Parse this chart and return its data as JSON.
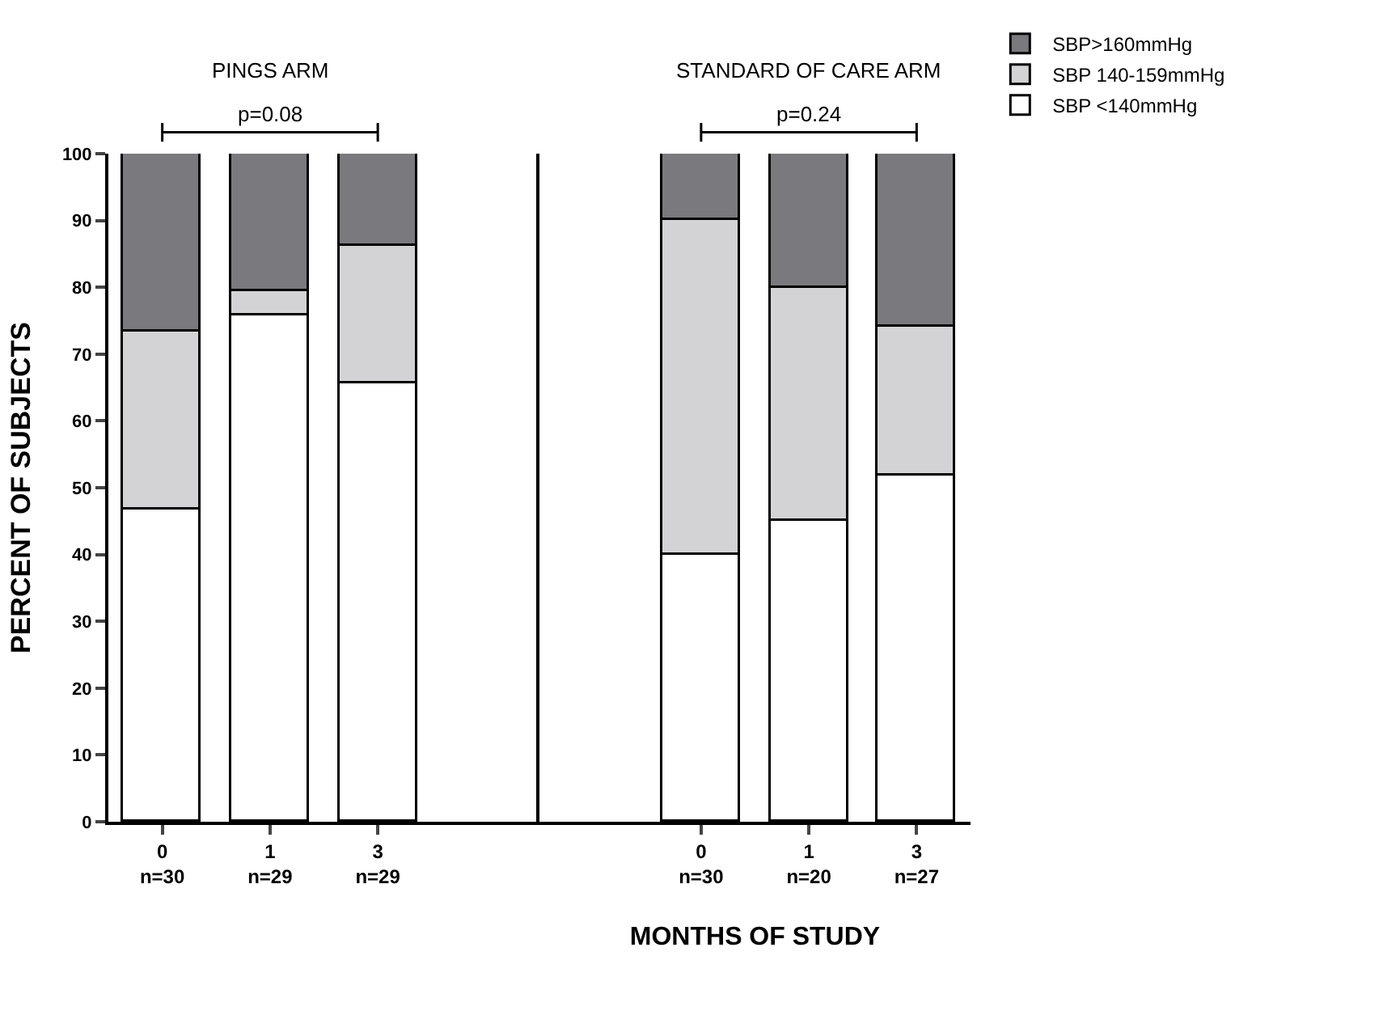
{
  "chart_data": [
    {
      "type": "bar",
      "title": "PINGS ARM",
      "ylabel": "PERCENT OF SUBJECTS",
      "stacked": true,
      "categories": [
        "0\nn=30",
        "1\nn=29",
        "3\nn=29",
        null
      ],
      "series": [
        {
          "name": "SBP <140mmHg",
          "color": "#ffffff",
          "values": [
            46.7,
            75.9,
            65.5,
            null
          ]
        },
        {
          "name": "SBP 140-159mmHg",
          "color": "#d3d3d5",
          "values": [
            26.6,
            3.4,
            20.7,
            null
          ]
        },
        {
          "name": "SBP>160mmHg",
          "color": "#7a7a7e",
          "values": [
            26.7,
            20.7,
            13.8,
            null
          ]
        }
      ],
      "annotations": [
        "p=0.08"
      ],
      "ylim": [
        0,
        100
      ],
      "yticks": [
        0,
        10,
        20,
        30,
        40,
        50,
        60,
        70,
        80,
        90,
        100
      ],
      "legend": "top right"
    },
    {
      "type": "bar",
      "title": "STANDARD OF CARE ARM",
      "xlabel": "MONTHS OF STUDY",
      "stacked": true,
      "categories": [
        null,
        "0\nn=30",
        "1\nn=20",
        "3\nn=27"
      ],
      "series": [
        {
          "color": "#ffffff",
          "values": [
            null,
            40,
            45,
            51.9
          ]
        },
        {
          "color": "#d3d3d5",
          "values": [
            null,
            50,
            35,
            22.2
          ]
        },
        {
          "color": "#7a7a7e",
          "values": [
            null,
            10,
            20,
            25.9
          ]
        }
      ],
      "annotations": [
        "p=0.24"
      ],
      "ylim": [
        0,
        100
      ],
      "yticks": [
        0,
        10,
        20,
        30,
        40,
        50,
        60,
        70,
        80,
        90,
        100
      ],
      "tick_labels": "x"
    }
  ]
}
